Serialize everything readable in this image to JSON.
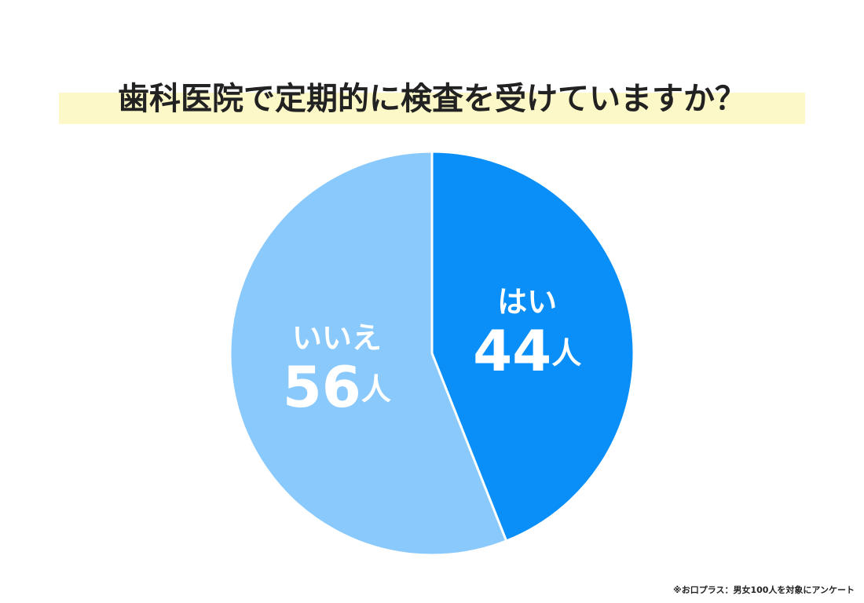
{
  "chart_data": {
    "type": "pie",
    "title": "歯科医院で定期的に検査を受けていますか？",
    "categories": [
      "はい",
      "いいえ"
    ],
    "values": [
      44,
      56
    ],
    "value_labels": [
      "44人",
      "56人"
    ],
    "colors": [
      "#0a8ff8",
      "#8ac9fc"
    ],
    "source": "※お口プラス：男女100人を対象にアンケート"
  }
}
